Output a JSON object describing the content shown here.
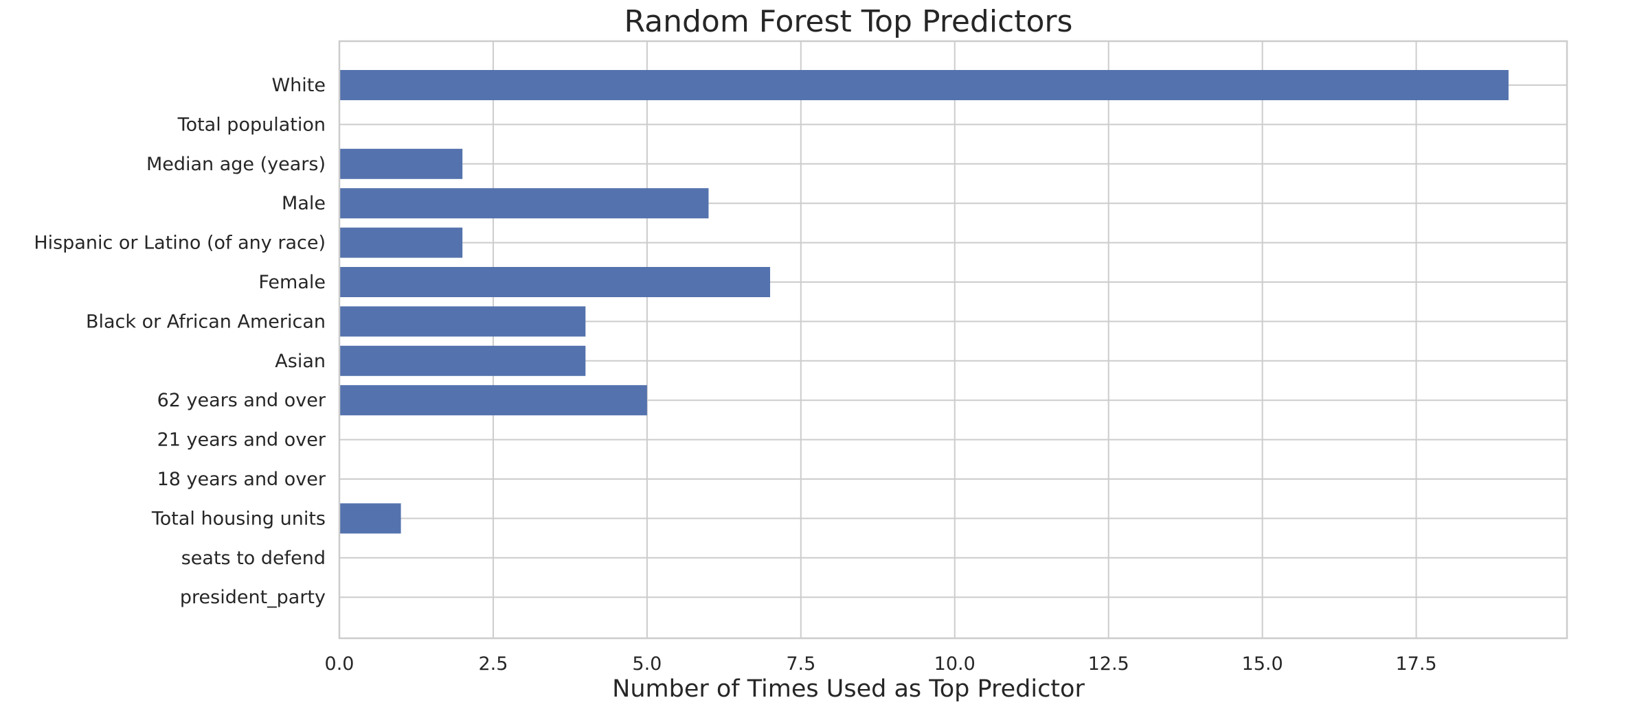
{
  "chart_data": {
    "type": "bar",
    "orientation": "horizontal",
    "title": "Random Forest Top Predictors",
    "xlabel": "Number of Times Used as Top Predictor",
    "ylabel": "",
    "categories": [
      "White",
      "Total population",
      "Median age (years)",
      "Male",
      "Hispanic or Latino (of any race)",
      "Female",
      "Black or African American",
      "Asian",
      "62 years and over",
      "21 years and over",
      "18 years and over",
      "Total housing units",
      "seats to defend",
      "president_party"
    ],
    "values": [
      19,
      0,
      2,
      6,
      2,
      7,
      4,
      4,
      5,
      0,
      0,
      1,
      0,
      0
    ],
    "xlim": [
      0,
      19.95
    ],
    "xticks": [
      0.0,
      2.5,
      5.0,
      7.5,
      10.0,
      12.5,
      15.0,
      17.5
    ],
    "xtick_labels": [
      "0.0",
      "2.5",
      "5.0",
      "7.5",
      "10.0",
      "12.5",
      "15.0",
      "17.5"
    ],
    "grid": true,
    "bar_color": "#5472ad",
    "grid_color": "#cccccc",
    "text_color": "#262626"
  }
}
